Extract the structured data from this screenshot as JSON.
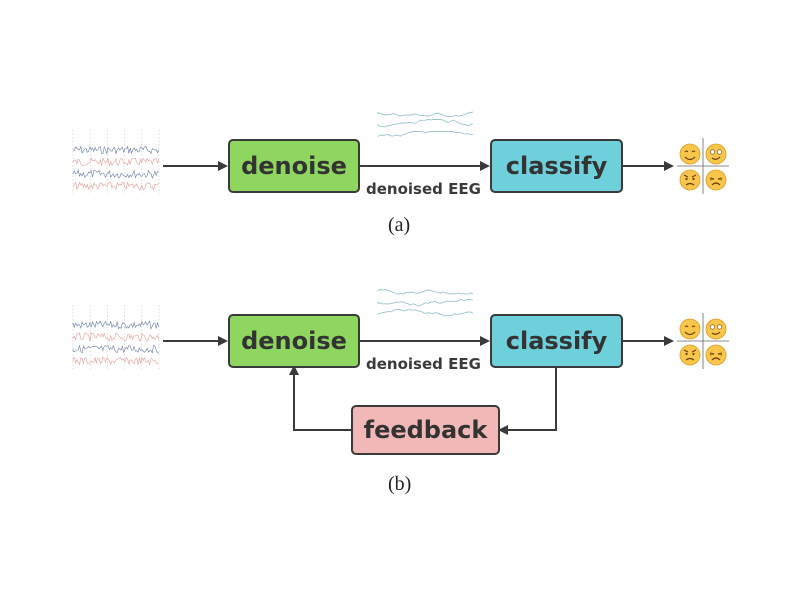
{
  "panel_a": {
    "denoise_label": "denoise",
    "classify_label": "classify",
    "edge_label": "denoised EEG",
    "caption": "(a)"
  },
  "panel_b": {
    "denoise_label": "denoise",
    "classify_label": "classify",
    "feedback_label": "feedback",
    "edge_label": "denoised EEG",
    "caption": "(b)"
  },
  "colors": {
    "denoise": "#8ed660",
    "classify": "#6dd0db",
    "feedback": "#f2b8b8",
    "emoji_face": "#f7c64a",
    "emoji_edge": "#e09a1d",
    "signal_blue": "#5b6f9e",
    "signal_red": "#e07a7a",
    "denoised_signal": "#8fb9c8"
  },
  "icons": {
    "raw_signal": "raw-eeg-signal-icon",
    "denoised_signal": "denoised-eeg-signal-icon",
    "emotions": "emotion-quadrant-icon"
  }
}
